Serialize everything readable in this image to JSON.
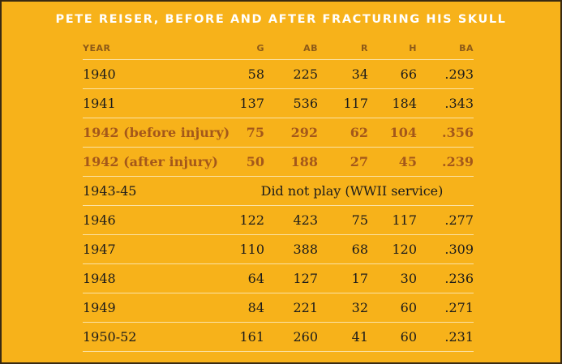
{
  "title": "PETE REISER, BEFORE AND AFTER FRACTURING HIS SKULL",
  "headers": [
    "YEAR",
    "G",
    "AB",
    "R",
    "H",
    "BA"
  ],
  "rows": [
    {
      "year": "1940",
      "g": "58",
      "ab": "225",
      "r": "34",
      "h": "66",
      "ba": ".293"
    },
    {
      "year": "1941",
      "g": "137",
      "ab": "536",
      "r": "117",
      "h": "184",
      "ba": ".343"
    },
    {
      "year": "1942 (before injury)",
      "g": "75",
      "ab": "292",
      "r": "62",
      "h": "104",
      "ba": ".356",
      "highlight": true
    },
    {
      "year": "1942 (after injury)",
      "g": "50",
      "ab": "188",
      "r": "27",
      "h": "45",
      "ba": ".239",
      "highlight": true
    },
    {
      "year": "1943-45",
      "note": "Did not play (WWII service)"
    },
    {
      "year": "1946",
      "g": "122",
      "ab": "423",
      "r": "75",
      "h": "117",
      "ba": ".277"
    },
    {
      "year": "1947",
      "g": "110",
      "ab": "388",
      "r": "68",
      "h": "120",
      "ba": ".309"
    },
    {
      "year": "1948",
      "g": "64",
      "ab": "127",
      "r": "17",
      "h": "30",
      "ba": ".236"
    },
    {
      "year": "1949",
      "g": "84",
      "ab": "221",
      "r": "32",
      "h": "60",
      "ba": ".271"
    },
    {
      "year": "1950-52",
      "g": "161",
      "ab": "260",
      "r": "41",
      "h": "60",
      "ba": ".231"
    }
  ],
  "colors": {
    "background": "#f7b21a",
    "border": "#3a2a12",
    "title_text": "#ffffff",
    "header_text": "#8d5a18",
    "highlight_text": "#a4581a",
    "rule": "#fbe3a6"
  }
}
